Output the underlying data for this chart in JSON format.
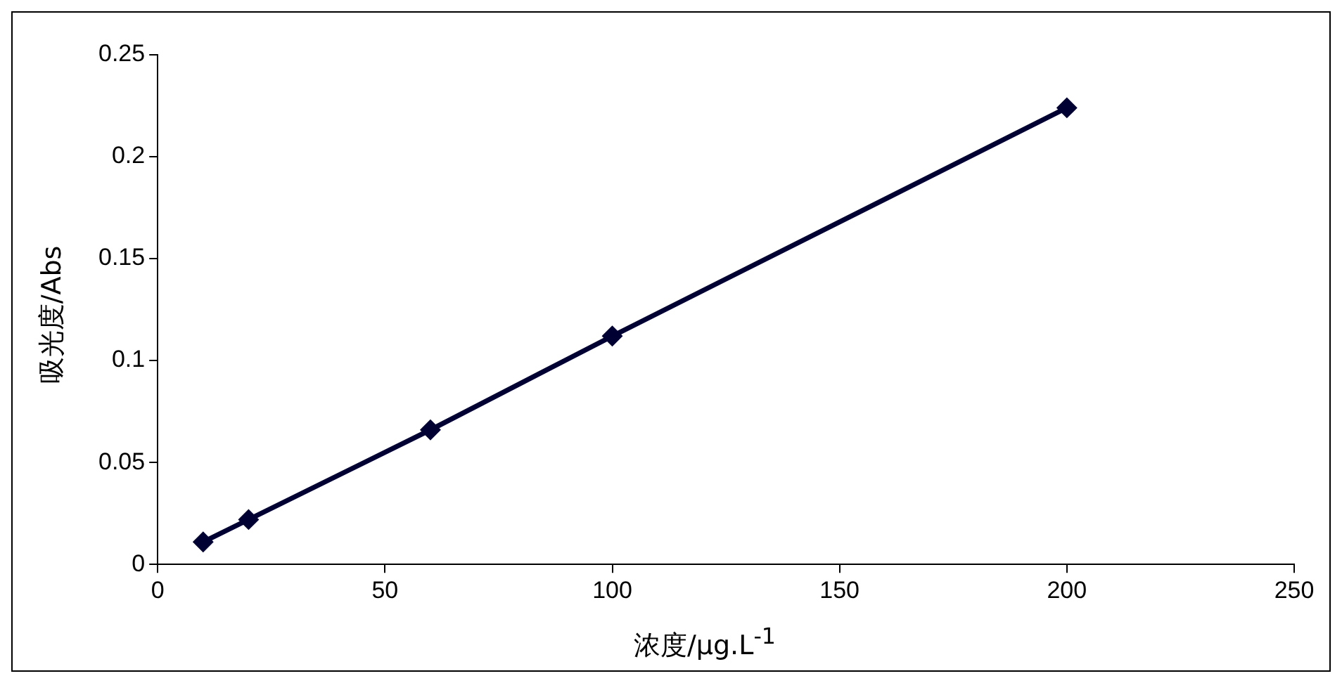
{
  "chart_data": {
    "type": "line",
    "xlabel": "浓度/μg.L$^{-1}$",
    "ylabel": "吸光度/Abs",
    "x": [
      10,
      20,
      60,
      100,
      200
    ],
    "series": [
      {
        "color": "#000033",
        "values": [
          0.011,
          0.022,
          0.066,
          0.112,
          0.224
        ]
      }
    ],
    "xlim": [
      0,
      250
    ],
    "xticks": [
      0,
      50,
      100,
      150,
      200,
      250
    ],
    "ylim": [
      0,
      0.25
    ],
    "yticks": [
      0,
      0.05,
      0.1,
      0.15,
      0.2,
      0.25
    ],
    "grid": false,
    "legend": false,
    "marker": "diamond",
    "line_style": "solid"
  }
}
